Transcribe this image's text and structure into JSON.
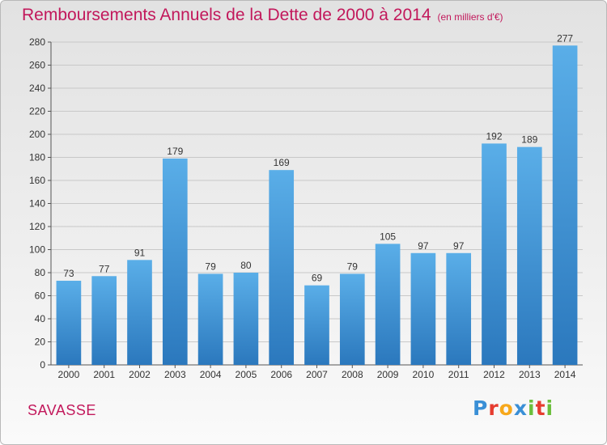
{
  "title": "Remboursements Annuels de la Dette de 2000 à 2014",
  "unit_note": "(en milliers d'€)",
  "commune": "SAVASSE",
  "logo": {
    "text": "Proxiti",
    "letters": [
      {
        "ch": "P",
        "color": "#3a8fd6"
      },
      {
        "ch": "r",
        "color": "#e63c2f"
      },
      {
        "ch": "o",
        "color": "#f7a81b"
      },
      {
        "ch": "x",
        "color": "#3a8fd6"
      },
      {
        "ch": "i",
        "color": "#6bbf3c"
      },
      {
        "ch": "t",
        "color": "#e63c2f"
      },
      {
        "ch": "i",
        "color": "#6bbf3c"
      }
    ]
  },
  "colors": {
    "title": "#c2185b",
    "bar_top": "#5aaee8",
    "bar_bottom": "#2b78bd",
    "grid": "#c8c8c8",
    "axis_text": "#333333"
  },
  "chart_data": {
    "type": "bar",
    "title": "Remboursements Annuels de la Dette de 2000 à 2014",
    "categories": [
      "2000",
      "2001",
      "2002",
      "2003",
      "2004",
      "2005",
      "2006",
      "2007",
      "2008",
      "2009",
      "2010",
      "2011",
      "2012",
      "2013",
      "2014"
    ],
    "values": [
      73,
      77,
      91,
      179,
      79,
      80,
      169,
      69,
      79,
      105,
      97,
      97,
      192,
      189,
      277
    ],
    "ylim": [
      0,
      280
    ],
    "yticks": [
      0,
      20,
      40,
      60,
      80,
      100,
      120,
      140,
      160,
      180,
      200,
      220,
      240,
      260,
      280
    ],
    "grid": true,
    "legend": "none"
  }
}
